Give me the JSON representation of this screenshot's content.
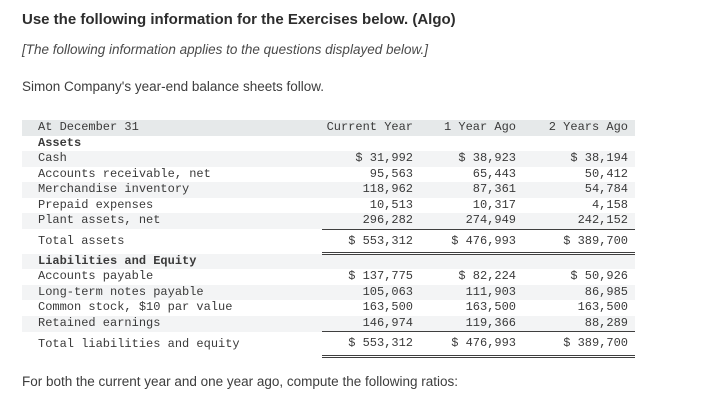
{
  "page": {
    "title": "Use the following information for the Exercises below. (Algo)",
    "note": "[The following information applies to the questions displayed below.]",
    "intro": "Simon Company's year-end balance sheets follow.",
    "footer": "For both the current year and one year ago, compute the following ratios:"
  },
  "colors": {
    "header_bg": "#e6e9ea",
    "stripe_bg": "#f3f4f5",
    "rule": "#3f3f3f",
    "text": "#3a3a3a"
  },
  "table": {
    "header": {
      "label": "At December 31",
      "col1": "Current Year",
      "col2": "1 Year Ago",
      "col3": "2 Years Ago"
    },
    "rows": [
      {
        "type": "section",
        "label": "Assets",
        "values": [
          "",
          "",
          ""
        ]
      },
      {
        "type": "data",
        "label": "Cash",
        "values": [
          "$ 31,992",
          "$ 38,923",
          "$ 38,194"
        ]
      },
      {
        "type": "data",
        "label": "Accounts receivable, net",
        "values": [
          "95,563",
          "65,443",
          "50,412"
        ]
      },
      {
        "type": "data",
        "label": "Merchandise inventory",
        "values": [
          "118,962",
          "87,361",
          "54,784"
        ]
      },
      {
        "type": "data",
        "label": "Prepaid expenses",
        "values": [
          "10,513",
          "10,317",
          "4,158"
        ]
      },
      {
        "type": "data-rule",
        "label": "Plant assets, net",
        "values": [
          "296,282",
          "274,949",
          "242,152"
        ]
      },
      {
        "type": "total",
        "label": "Total assets",
        "values": [
          "$ 553,312",
          "$ 476,993",
          "$ 389,700"
        ]
      },
      {
        "type": "section",
        "label": "Liabilities and Equity",
        "values": [
          "",
          "",
          ""
        ]
      },
      {
        "type": "data",
        "label": "Accounts payable",
        "values": [
          "$ 137,775",
          "$ 82,224",
          "$ 50,926"
        ]
      },
      {
        "type": "data",
        "label": "Long-term notes payable",
        "values": [
          "105,063",
          "111,903",
          "86,985"
        ]
      },
      {
        "type": "data",
        "label": "Common stock, $10 par value",
        "values": [
          "163,500",
          "163,500",
          "163,500"
        ]
      },
      {
        "type": "data-rule",
        "label": "Retained earnings",
        "values": [
          "146,974",
          "119,366",
          "88,289"
        ]
      },
      {
        "type": "total",
        "label": "Total liabilities and equity",
        "values": [
          "$ 553,312",
          "$ 476,993",
          "$ 389,700"
        ]
      }
    ]
  }
}
